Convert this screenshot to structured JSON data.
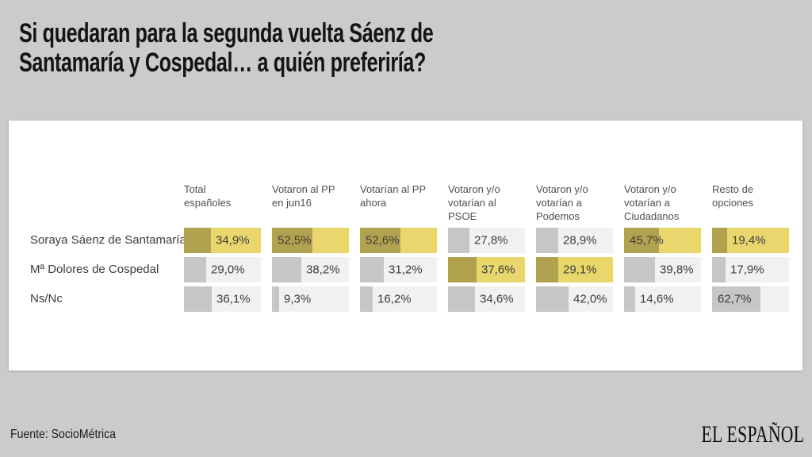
{
  "page": {
    "title_line1": "Si quedaran para la segunda vuelta Sáenz de",
    "title_line2": "Santamaría y Cospedal… a quién preferiría?",
    "source": "Fuente: SocioMétrica",
    "brand": "EL ESPAÑOL"
  },
  "colors": {
    "page_background": "#cbcbcb",
    "card_background": "#ffffff",
    "highlight_cell_background": "#e9d76e",
    "highlight_bar": "#b1a250",
    "normal_cell_background": "#f1f1ef",
    "normal_bar": "#c6c6c5",
    "value_text": "#3c3c3c",
    "header_text": "#4f4f4f"
  },
  "chart_data": {
    "type": "bar",
    "title": "Si quedaran para la segunda vuelta Sáenz de Santamaría y Cospedal… a quién preferiría?",
    "source": "Fuente: SocioMétrica",
    "xlim": [
      0,
      100
    ],
    "value_suffix": "%",
    "categories": [
      "Total españoles",
      "Votaron al PP en jun16",
      "Votarían al PP ahora",
      "Votaron y/o votarían al PSOE",
      "Votaron y/o votarían a Podemos",
      "Votaron y/o votarían a Ciudadanos",
      "Resto de opciones"
    ],
    "series": [
      {
        "name": "Soraya Sáenz de Santamaría",
        "values": [
          34.9,
          52.5,
          52.6,
          27.8,
          28.9,
          45.7,
          19.4
        ],
        "labels": [
          "34,9%",
          "52,5%",
          "52,6%",
          "27,8%",
          "28,9%",
          "45,7%",
          "19,4%"
        ],
        "highlighted": [
          true,
          true,
          true,
          false,
          false,
          true,
          true
        ]
      },
      {
        "name": "Mª Dolores de Cospedal",
        "values": [
          29.0,
          38.2,
          31.2,
          37.6,
          29.1,
          39.8,
          17.9
        ],
        "labels": [
          "29,0%",
          "38,2%",
          "31,2%",
          "37,6%",
          "29,1%",
          "39,8%",
          "17,9%"
        ],
        "highlighted": [
          false,
          false,
          false,
          true,
          true,
          false,
          false
        ]
      },
      {
        "name": "Ns/Nc",
        "values": [
          36.1,
          9.3,
          16.2,
          34.6,
          42.0,
          14.6,
          62.7
        ],
        "labels": [
          "36,1%",
          "9,3%",
          "16,2%",
          "34,6%",
          "42,0%",
          "14,6%",
          "62,7%"
        ],
        "highlighted": [
          false,
          false,
          false,
          false,
          false,
          false,
          false
        ]
      }
    ]
  }
}
